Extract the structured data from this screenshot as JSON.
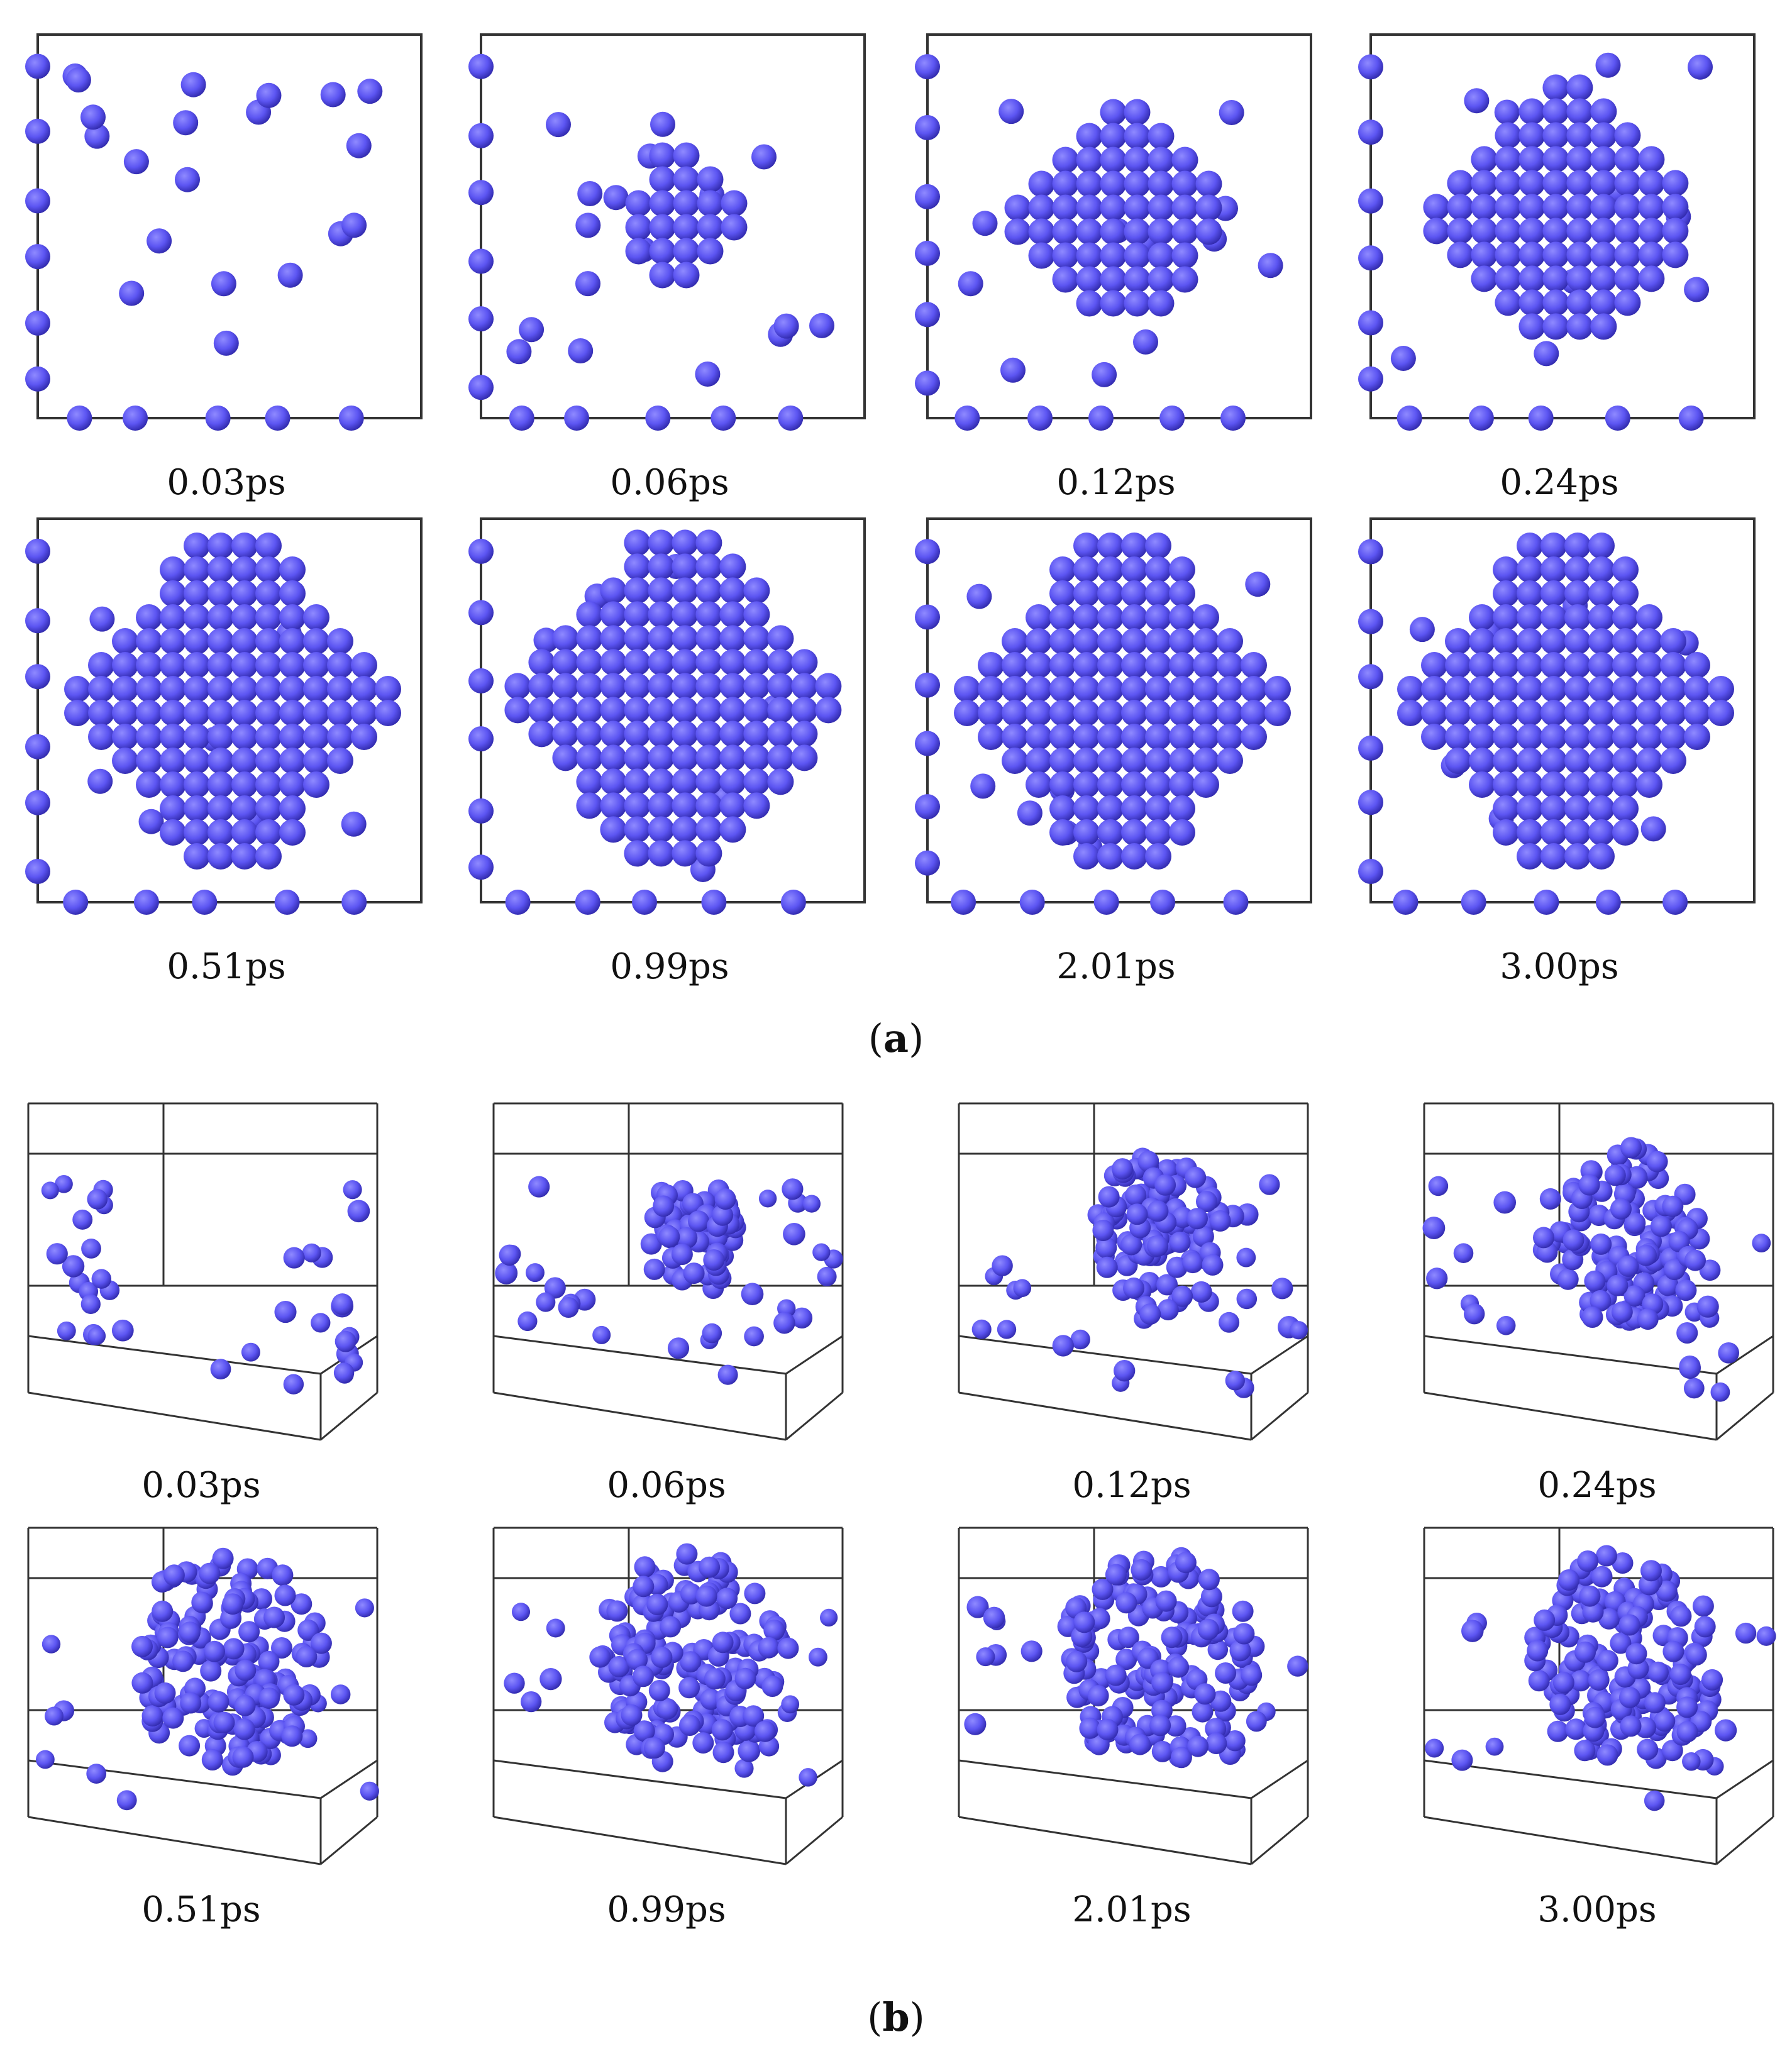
{
  "figure": {
    "atom_color": "#5c55f2",
    "atom_edge_color": "#2e27a8",
    "box_color": "#333333",
    "part_a": {
      "label_prefix": "(",
      "label_letter": "a",
      "label_suffix": ")",
      "time_labels": [
        "0.03ps",
        "0.06ps",
        "0.12ps",
        "0.24ps",
        "0.51ps",
        "0.99ps",
        "2.01ps",
        "3.00ps"
      ],
      "cluster_level": [
        0,
        0.25,
        0.55,
        0.72,
        0.9,
        0.92,
        0.9,
        0.9
      ]
    },
    "part_b": {
      "label_prefix": "(",
      "label_letter": "b",
      "label_suffix": ")",
      "time_labels": [
        "0.03ps",
        "0.06ps",
        "0.12ps",
        "0.24ps",
        "0.51ps",
        "0.99ps",
        "2.01ps",
        "3.00ps"
      ],
      "cluster_level": [
        0,
        0.3,
        0.55,
        0.7,
        0.9,
        0.92,
        0.9,
        0.9
      ]
    }
  }
}
